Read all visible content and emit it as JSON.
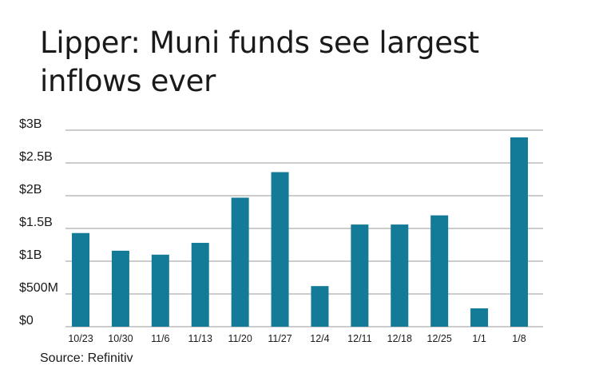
{
  "title": "Lipper: Muni funds see largest inflows ever",
  "source": "Source: Refinitiv",
  "colors": {
    "bar": "#137a98",
    "grid": "#9a9a9a",
    "text": "#1a1a1a"
  },
  "chart_data": {
    "type": "bar",
    "title": "Lipper: Muni funds see largest inflows ever",
    "xlabel": "",
    "ylabel": "",
    "categories": [
      "10/23",
      "10/30",
      "11/6",
      "11/13",
      "11/20",
      "11/27",
      "12/4",
      "12/11",
      "12/18",
      "12/25",
      "1/1",
      "1/8"
    ],
    "values": [
      1.43,
      1.16,
      1.1,
      1.28,
      1.97,
      2.36,
      0.62,
      1.56,
      1.56,
      1.7,
      0.28,
      2.89
    ],
    "units": "billions of dollars",
    "ylim": [
      0,
      3
    ],
    "yticks": [
      0,
      0.5,
      1,
      1.5,
      2,
      2.5,
      3
    ],
    "ytick_labels": [
      "$0",
      "$500M",
      "$1B",
      "$1.5B",
      "$2B",
      "$2.5B",
      "$3B"
    ],
    "grid": true,
    "legend": "none"
  }
}
